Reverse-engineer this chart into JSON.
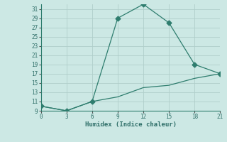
{
  "xlabel": "Humidex (Indice chaleur)",
  "line1_x": [
    0,
    3,
    6,
    9,
    12,
    15,
    18,
    21
  ],
  "line1_y": [
    10,
    9,
    11,
    29,
    32,
    28,
    19,
    17
  ],
  "line2_x": [
    0,
    3,
    6,
    9,
    12,
    15,
    18,
    21
  ],
  "line2_y": [
    10,
    9,
    11,
    12,
    14,
    14.5,
    16,
    17
  ],
  "line_color": "#2e7d6e",
  "bg_color": "#cce8e4",
  "grid_color": "#b0ceca",
  "xlim": [
    0,
    21
  ],
  "ylim": [
    9,
    32
  ],
  "xticks": [
    0,
    3,
    6,
    9,
    12,
    15,
    18,
    21
  ],
  "yticks": [
    9,
    11,
    13,
    15,
    17,
    19,
    21,
    23,
    25,
    27,
    29,
    31
  ],
  "tick_fontsize": 5.5,
  "xlabel_fontsize": 6.5,
  "marker_size": 3.5,
  "line_width": 0.9
}
